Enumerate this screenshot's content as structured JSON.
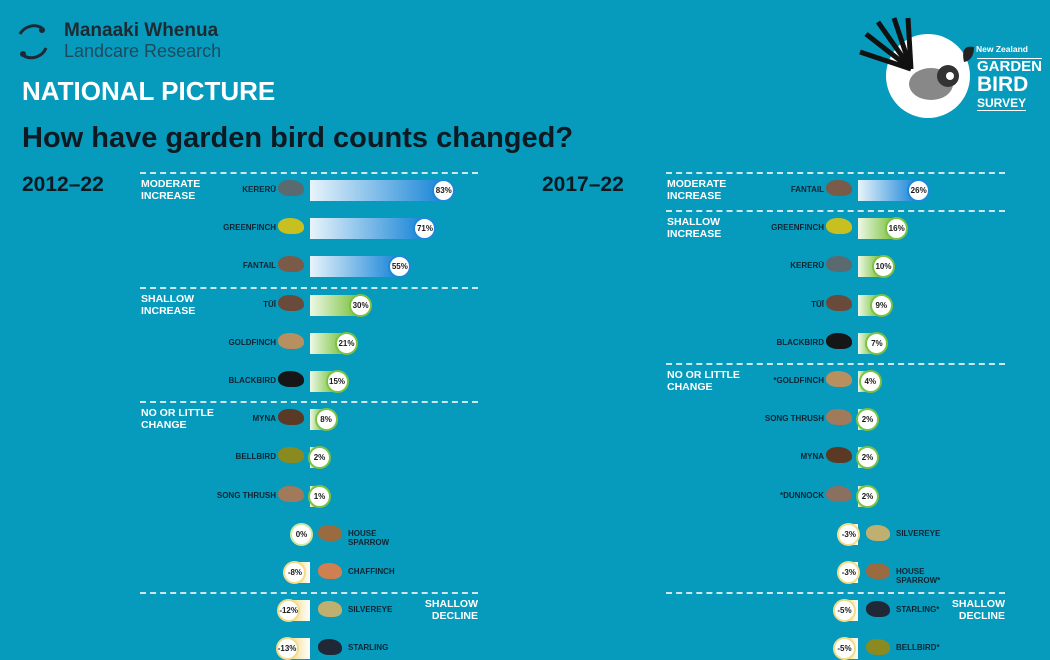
{
  "header": {
    "org_line1": "Manaaki Whenua",
    "org_line2": "Landcare Research",
    "section": "NATIONAL PICTURE",
    "title": "How have garden bird counts changed?",
    "survey_logo": {
      "line1": "New Zealand",
      "line2": "GARDEN",
      "line3": "BIRD",
      "line4": "SURVEY"
    }
  },
  "colors": {
    "background": "#069bbc",
    "moderate_increase": "#1e88d8",
    "shallow_increase": "#7cc242",
    "decline": "#f2dc8a"
  },
  "chart_data": [
    {
      "type": "bar",
      "title": "2012–22",
      "unit": "%",
      "categories": [
        {
          "label": "MODERATE INCREASE",
          "side": "left",
          "rows": [
            {
              "bird": "KERERŪ",
              "value": 83,
              "color": "#5a6a6e"
            },
            {
              "bird": "GREENFINCH",
              "value": 71,
              "color": "#c8c020"
            },
            {
              "bird": "FANTAIL",
              "value": 55,
              "color": "#7a5a48"
            }
          ]
        },
        {
          "label": "SHALLOW INCREASE",
          "side": "left",
          "rows": [
            {
              "bird": "TŪĪ",
              "value": 30,
              "color": "#6a4a3a"
            },
            {
              "bird": "GOLDFINCH",
              "value": 21,
              "color": "#b89060"
            },
            {
              "bird": "BLACKBIRD",
              "value": 15,
              "color": "#161616"
            }
          ]
        },
        {
          "label": "NO OR LITTLE CHANGE",
          "side": "left",
          "rows": [
            {
              "bird": "MYNA",
              "value": 8,
              "color": "#5a3a24"
            },
            {
              "bird": "BELLBIRD",
              "value": 2,
              "color": "#8a8a20"
            },
            {
              "bird": "SONG THRUSH",
              "value": 1,
              "color": "#a07a5a"
            },
            {
              "bird": "HOUSE SPARROW",
              "value": 0,
              "color": "#9a6a40"
            },
            {
              "bird": "CHAFFINCH",
              "value": -8,
              "color": "#d08050"
            }
          ]
        },
        {
          "label": "SHALLOW DECLINE",
          "side": "right",
          "rows": [
            {
              "bird": "SILVEREYE",
              "value": -12,
              "color": "#c0b070"
            },
            {
              "bird": "STARLING",
              "value": -13,
              "color": "#202838"
            }
          ]
        }
      ]
    },
    {
      "type": "bar",
      "title": "2017–22",
      "unit": "%",
      "categories": [
        {
          "label": "MODERATE INCREASE",
          "side": "left",
          "rows": [
            {
              "bird": "FANTAIL",
              "value": 26,
              "color": "#7a5a48"
            }
          ]
        },
        {
          "label": "SHALLOW INCREASE",
          "side": "left",
          "rows": [
            {
              "bird": "GREENFINCH",
              "value": 16,
              "color": "#c8c020"
            },
            {
              "bird": "KERERŪ",
              "value": 10,
              "color": "#5a6a6e"
            },
            {
              "bird": "TŪĪ",
              "value": 9,
              "color": "#6a4a3a"
            },
            {
              "bird": "BLACKBIRD",
              "value": 7,
              "color": "#161616"
            }
          ]
        },
        {
          "label": "NO OR LITTLE CHANGE",
          "side": "left",
          "rows": [
            {
              "bird": "*GOLDFINCH",
              "value": 4,
              "color": "#b89060"
            },
            {
              "bird": "SONG THRUSH",
              "value": 2,
              "color": "#a07a5a"
            },
            {
              "bird": "MYNA",
              "value": 2,
              "color": "#5a3a24"
            },
            {
              "bird": "*DUNNOCK",
              "value": 2,
              "color": "#8a7060"
            },
            {
              "bird": "SILVEREYE",
              "value": -3,
              "color": "#c0b070"
            },
            {
              "bird": "HOUSE SPARROW*",
              "value": -3,
              "color": "#9a6a40"
            }
          ]
        },
        {
          "label": "SHALLOW DECLINE",
          "side": "right",
          "rows": [
            {
              "bird": "STARLING*",
              "value": -5,
              "color": "#202838"
            },
            {
              "bird": "BELLBIRD*",
              "value": -5,
              "color": "#8a8a20"
            }
          ]
        }
      ]
    }
  ]
}
